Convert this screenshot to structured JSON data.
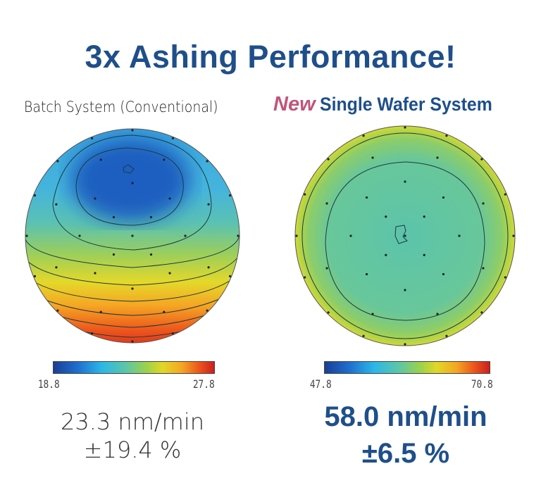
{
  "title": "3x Ashing Performance!",
  "left": {
    "label": "Batch System (Conventional)",
    "rate": "23.3 nm/min",
    "uniformity": "±19.4 %"
  },
  "right": {
    "badge": "New",
    "label": "Single Wafer System",
    "rate": "58.0 nm/min",
    "uniformity": "±6.5 %"
  },
  "chart_data": [
    {
      "type": "heatmap",
      "title": "Batch System (Conventional)",
      "colorbar_min": "18.8",
      "colorbar_max": "27.8",
      "mean_rate_nm_per_min": 23.3,
      "uniformity_pct": 19.4
    },
    {
      "type": "heatmap",
      "title": "Single Wafer System",
      "colorbar_min": "47.8",
      "colorbar_max": "70.8",
      "mean_rate_nm_per_min": 58.0,
      "uniformity_pct": 6.5
    }
  ]
}
